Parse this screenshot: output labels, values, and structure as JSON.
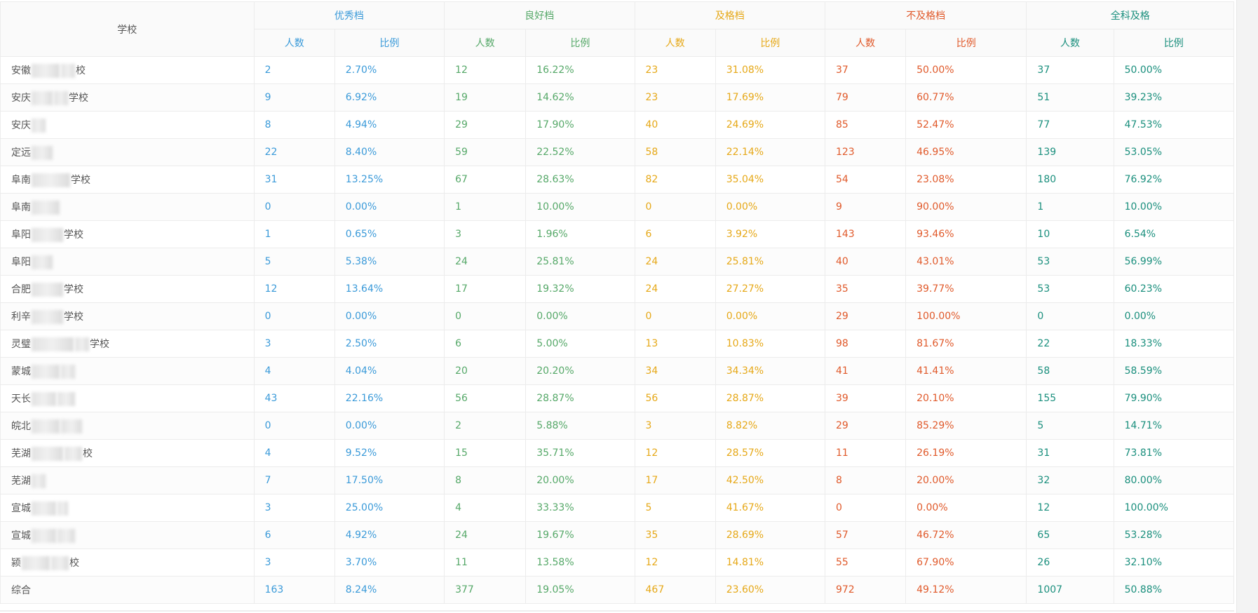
{
  "header": {
    "school": "学校",
    "groups": [
      {
        "label": "优秀档",
        "color": "#3a9ad9"
      },
      {
        "label": "良好档",
        "color": "#55a868"
      },
      {
        "label": "及格档",
        "color": "#e6a817"
      },
      {
        "label": "不及格档",
        "color": "#e0592a"
      },
      {
        "label": "全科及格",
        "color": "#1a8f7d"
      }
    ],
    "count_label": "人数",
    "ratio_label": "比例"
  },
  "rows": [
    {
      "prefix": "安徽",
      "suffix": "校",
      "vals": [
        "2",
        "2.70%",
        "12",
        "16.22%",
        "23",
        "31.08%",
        "37",
        "50.00%",
        "37",
        "50.00%"
      ]
    },
    {
      "prefix": "安庆",
      "suffix": "学校",
      "vals": [
        "9",
        "6.92%",
        "19",
        "14.62%",
        "23",
        "17.69%",
        "79",
        "60.77%",
        "51",
        "39.23%"
      ]
    },
    {
      "prefix": "安庆",
      "suffix": "",
      "vals": [
        "8",
        "4.94%",
        "29",
        "17.90%",
        "40",
        "24.69%",
        "85",
        "52.47%",
        "77",
        "47.53%"
      ]
    },
    {
      "prefix": "定远",
      "suffix": "",
      "vals": [
        "22",
        "8.40%",
        "59",
        "22.52%",
        "58",
        "22.14%",
        "123",
        "46.95%",
        "139",
        "53.05%"
      ]
    },
    {
      "prefix": "阜南",
      "suffix": "学校",
      "vals": [
        "31",
        "13.25%",
        "67",
        "28.63%",
        "82",
        "35.04%",
        "54",
        "23.08%",
        "180",
        "76.92%"
      ]
    },
    {
      "prefix": "阜南",
      "suffix": "",
      "vals": [
        "0",
        "0.00%",
        "1",
        "10.00%",
        "0",
        "0.00%",
        "9",
        "90.00%",
        "1",
        "10.00%"
      ]
    },
    {
      "prefix": "阜阳",
      "suffix": "学校",
      "vals": [
        "1",
        "0.65%",
        "3",
        "1.96%",
        "6",
        "3.92%",
        "143",
        "93.46%",
        "10",
        "6.54%"
      ]
    },
    {
      "prefix": "阜阳",
      "suffix": "",
      "vals": [
        "5",
        "5.38%",
        "24",
        "25.81%",
        "24",
        "25.81%",
        "40",
        "43.01%",
        "53",
        "56.99%"
      ]
    },
    {
      "prefix": "合肥",
      "suffix": "学校",
      "vals": [
        "12",
        "13.64%",
        "17",
        "19.32%",
        "24",
        "27.27%",
        "35",
        "39.77%",
        "53",
        "60.23%"
      ]
    },
    {
      "prefix": "利辛",
      "suffix": "学校",
      "vals": [
        "0",
        "0.00%",
        "0",
        "0.00%",
        "0",
        "0.00%",
        "29",
        "100.00%",
        "0",
        "0.00%"
      ]
    },
    {
      "prefix": "灵璧",
      "suffix": "学校",
      "vals": [
        "3",
        "2.50%",
        "6",
        "5.00%",
        "13",
        "10.83%",
        "98",
        "81.67%",
        "22",
        "18.33%"
      ]
    },
    {
      "prefix": "蒙城",
      "suffix": "",
      "vals": [
        "4",
        "4.04%",
        "20",
        "20.20%",
        "34",
        "34.34%",
        "41",
        "41.41%",
        "58",
        "58.59%"
      ]
    },
    {
      "prefix": "天长",
      "suffix": "",
      "vals": [
        "43",
        "22.16%",
        "56",
        "28.87%",
        "56",
        "28.87%",
        "39",
        "20.10%",
        "155",
        "79.90%"
      ]
    },
    {
      "prefix": "皖北",
      "suffix": "",
      "vals": [
        "0",
        "0.00%",
        "2",
        "5.88%",
        "3",
        "8.82%",
        "29",
        "85.29%",
        "5",
        "14.71%"
      ]
    },
    {
      "prefix": "芜湖",
      "suffix": "校",
      "vals": [
        "4",
        "9.52%",
        "15",
        "35.71%",
        "12",
        "28.57%",
        "11",
        "26.19%",
        "31",
        "73.81%"
      ]
    },
    {
      "prefix": "芜湖",
      "suffix": "",
      "vals": [
        "7",
        "17.50%",
        "8",
        "20.00%",
        "17",
        "42.50%",
        "8",
        "20.00%",
        "32",
        "80.00%"
      ]
    },
    {
      "prefix": "宣城",
      "suffix": "",
      "vals": [
        "3",
        "25.00%",
        "4",
        "33.33%",
        "5",
        "41.67%",
        "0",
        "0.00%",
        "12",
        "100.00%"
      ]
    },
    {
      "prefix": "宣城",
      "suffix": "",
      "vals": [
        "6",
        "4.92%",
        "24",
        "19.67%",
        "35",
        "28.69%",
        "57",
        "46.72%",
        "65",
        "53.28%"
      ]
    },
    {
      "prefix": "颍",
      "suffix": "校",
      "vals": [
        "3",
        "3.70%",
        "11",
        "13.58%",
        "12",
        "14.81%",
        "55",
        "67.90%",
        "26",
        "32.10%"
      ]
    },
    {
      "prefix": "综合",
      "suffix": "",
      "vals": [
        "163",
        "8.24%",
        "377",
        "19.05%",
        "467",
        "23.60%",
        "972",
        "49.12%",
        "1007",
        "50.88%"
      ]
    }
  ]
}
